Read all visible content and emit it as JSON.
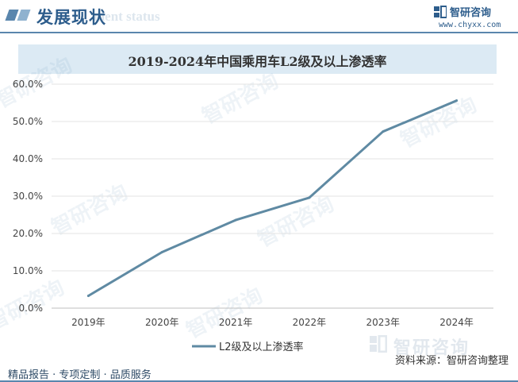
{
  "header": {
    "title": "发展现状",
    "subtitle_watermark": "ment status",
    "brand_name": "智研咨询",
    "brand_url": "www.chyxx.com",
    "accent_color": "#2d5d8c"
  },
  "watermark": {
    "text": "智研咨询"
  },
  "footer": {
    "left_text": "精品报告 · 专项定制 · 品质服务",
    "source": "资料来源：智研咨询整理",
    "brand_name": "智研咨询"
  },
  "chart_data": {
    "type": "line",
    "title": "2019-2024年中国乘用车L2级及以上渗透率",
    "categories": [
      "2019年",
      "2020年",
      "2021年",
      "2022年",
      "2023年",
      "2024年"
    ],
    "series": [
      {
        "name": "L2级及以上渗透率",
        "values": [
          3.3,
          15.0,
          23.6,
          29.6,
          47.3,
          55.6
        ],
        "color": "#5f8aa3"
      }
    ],
    "ylim": [
      0,
      60
    ],
    "yticks": [
      "0.0%",
      "10.0%",
      "20.0%",
      "30.0%",
      "40.0%",
      "50.0%",
      "60.0%"
    ],
    "grid": true,
    "legend": "bottom"
  }
}
